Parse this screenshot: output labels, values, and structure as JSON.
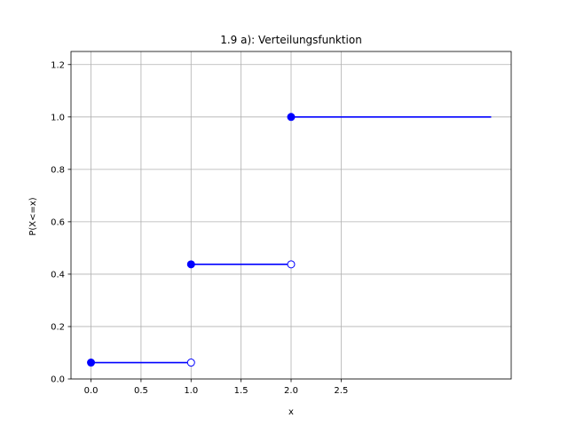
{
  "chart_data": {
    "type": "line",
    "title": "1.9 a): Verteilungsfunktion",
    "xlabel": "x",
    "ylabel": "P(X<=x)",
    "xlim": [
      -0.2,
      4.2
    ],
    "ylim": [
      0.0,
      1.25
    ],
    "xticks": [
      0.0,
      0.5,
      1.0,
      1.5,
      2.0,
      2.5
    ],
    "xtick_labels": [
      "0.0",
      "0.5",
      "1.0",
      "1.5",
      "2.0",
      "2.5"
    ],
    "yticks": [
      0.0,
      0.2,
      0.4,
      0.6,
      0.8,
      1.0,
      1.2
    ],
    "ytick_labels": [
      "0.0",
      "0.2",
      "0.4",
      "0.6",
      "0.8",
      "1.0",
      "1.2"
    ],
    "grid": true,
    "color": "#0000ff",
    "segments": [
      {
        "x": [
          0.0,
          1.0
        ],
        "y": 0.0625,
        "start_filled": true,
        "end_filled": false
      },
      {
        "x": [
          1.0,
          2.0
        ],
        "y": 0.4375,
        "start_filled": true,
        "end_filled": false
      },
      {
        "x": [
          2.0,
          4.0
        ],
        "y": 1.0,
        "start_filled": true,
        "end_filled": null
      }
    ]
  }
}
